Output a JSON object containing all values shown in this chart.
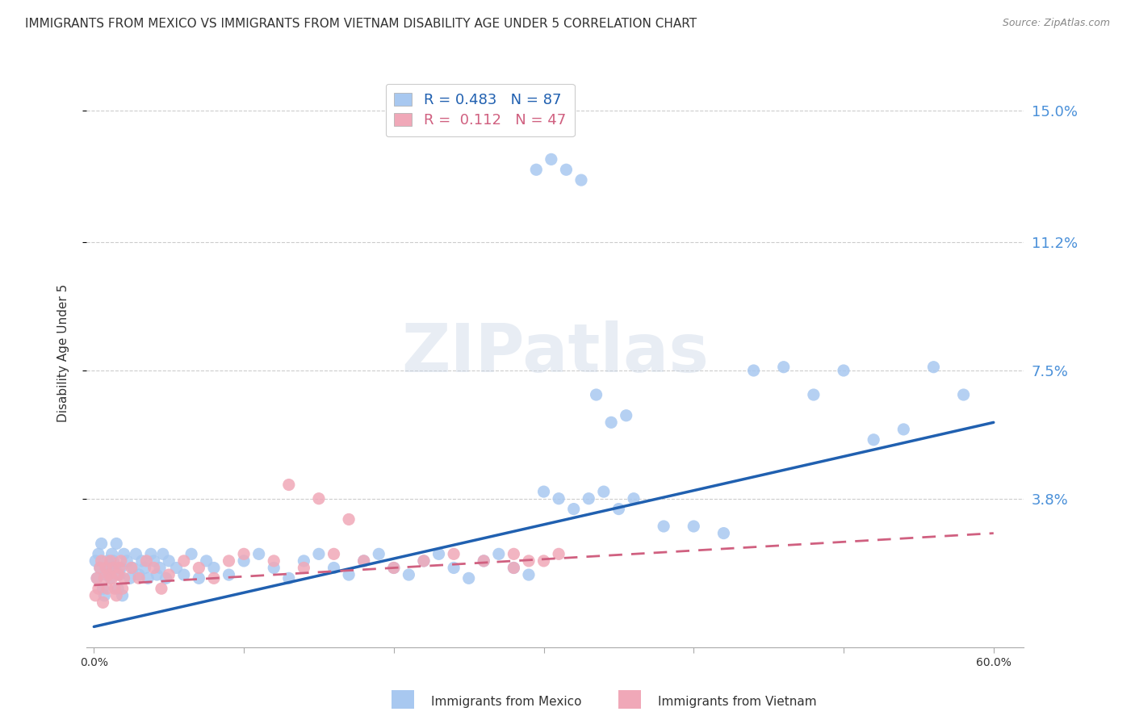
{
  "title": "IMMIGRANTS FROM MEXICO VS IMMIGRANTS FROM VIETNAM DISABILITY AGE UNDER 5 CORRELATION CHART",
  "source": "Source: ZipAtlas.com",
  "ylabel": "Disability Age Under 5",
  "xlim": [
    -0.005,
    0.62
  ],
  "ylim": [
    -0.005,
    0.165
  ],
  "ytick_positions": [
    0.038,
    0.075,
    0.112,
    0.15
  ],
  "ytick_labels": [
    "3.8%",
    "7.5%",
    "11.2%",
    "15.0%"
  ],
  "xtick_positions": [
    0.0,
    0.1,
    0.2,
    0.3,
    0.4,
    0.5,
    0.6
  ],
  "xtick_labels": [
    "0.0%",
    "",
    "",
    "",
    "",
    "",
    "60.0%"
  ],
  "r_mexico": 0.483,
  "n_mexico": 87,
  "r_vietnam": 0.112,
  "n_vietnam": 47,
  "color_mexico": "#a8c8f0",
  "color_vietnam": "#f0a8b8",
  "color_mexico_line": "#2060b0",
  "color_vietnam_line": "#d06080",
  "watermark": "ZIPatlas",
  "legend_label_mexico": "Immigrants from Mexico",
  "legend_label_vietnam": "Immigrants from Vietnam",
  "mexico_x": [
    0.001,
    0.002,
    0.003,
    0.004,
    0.005,
    0.006,
    0.007,
    0.008,
    0.009,
    0.01,
    0.011,
    0.012,
    0.013,
    0.014,
    0.015,
    0.016,
    0.017,
    0.018,
    0.019,
    0.02,
    0.022,
    0.024,
    0.026,
    0.028,
    0.03,
    0.032,
    0.034,
    0.036,
    0.038,
    0.04,
    0.042,
    0.044,
    0.046,
    0.048,
    0.05,
    0.055,
    0.06,
    0.065,
    0.07,
    0.075,
    0.08,
    0.09,
    0.1,
    0.11,
    0.12,
    0.13,
    0.14,
    0.15,
    0.16,
    0.17,
    0.18,
    0.19,
    0.2,
    0.21,
    0.22,
    0.23,
    0.24,
    0.25,
    0.26,
    0.27,
    0.28,
    0.29,
    0.3,
    0.31,
    0.32,
    0.33,
    0.34,
    0.35,
    0.36,
    0.38,
    0.4,
    0.42,
    0.44,
    0.46,
    0.48,
    0.5,
    0.52,
    0.54,
    0.56,
    0.58,
    0.295,
    0.305,
    0.315,
    0.325,
    0.335,
    0.345,
    0.355
  ],
  "mexico_y": [
    0.02,
    0.015,
    0.022,
    0.018,
    0.025,
    0.012,
    0.01,
    0.016,
    0.02,
    0.018,
    0.015,
    0.022,
    0.02,
    0.018,
    0.025,
    0.012,
    0.016,
    0.018,
    0.01,
    0.022,
    0.02,
    0.015,
    0.018,
    0.022,
    0.016,
    0.02,
    0.018,
    0.015,
    0.022,
    0.02,
    0.016,
    0.018,
    0.022,
    0.015,
    0.02,
    0.018,
    0.016,
    0.022,
    0.015,
    0.02,
    0.018,
    0.016,
    0.02,
    0.022,
    0.018,
    0.015,
    0.02,
    0.022,
    0.018,
    0.016,
    0.02,
    0.022,
    0.018,
    0.016,
    0.02,
    0.022,
    0.018,
    0.015,
    0.02,
    0.022,
    0.018,
    0.016,
    0.04,
    0.038,
    0.035,
    0.038,
    0.04,
    0.035,
    0.038,
    0.03,
    0.03,
    0.028,
    0.075,
    0.076,
    0.068,
    0.075,
    0.055,
    0.058,
    0.076,
    0.068,
    0.133,
    0.136,
    0.133,
    0.13,
    0.068,
    0.06,
    0.062
  ],
  "vietnam_x": [
    0.001,
    0.002,
    0.003,
    0.004,
    0.005,
    0.006,
    0.007,
    0.008,
    0.009,
    0.01,
    0.011,
    0.012,
    0.013,
    0.014,
    0.015,
    0.016,
    0.017,
    0.018,
    0.019,
    0.02,
    0.025,
    0.03,
    0.035,
    0.04,
    0.045,
    0.05,
    0.06,
    0.07,
    0.08,
    0.09,
    0.1,
    0.12,
    0.14,
    0.16,
    0.18,
    0.2,
    0.22,
    0.24,
    0.26,
    0.28,
    0.13,
    0.15,
    0.17,
    0.28,
    0.29,
    0.3,
    0.31
  ],
  "vietnam_y": [
    0.01,
    0.015,
    0.012,
    0.018,
    0.02,
    0.008,
    0.015,
    0.018,
    0.012,
    0.016,
    0.02,
    0.015,
    0.018,
    0.012,
    0.01,
    0.016,
    0.018,
    0.02,
    0.012,
    0.015,
    0.018,
    0.015,
    0.02,
    0.018,
    0.012,
    0.016,
    0.02,
    0.018,
    0.015,
    0.02,
    0.022,
    0.02,
    0.018,
    0.022,
    0.02,
    0.018,
    0.02,
    0.022,
    0.02,
    0.018,
    0.042,
    0.038,
    0.032,
    0.022,
    0.02,
    0.02,
    0.022
  ],
  "background_color": "#ffffff",
  "grid_color": "#cccccc",
  "title_color": "#333333",
  "axis_label_color": "#4a90d9",
  "title_fontsize": 11,
  "label_fontsize": 10,
  "mexico_line_start_x": 0.0,
  "mexico_line_start_y": 0.001,
  "mexico_line_end_x": 0.6,
  "mexico_line_end_y": 0.06,
  "vietnam_line_start_x": 0.0,
  "vietnam_line_start_y": 0.013,
  "vietnam_line_end_x": 0.6,
  "vietnam_line_end_y": 0.028
}
